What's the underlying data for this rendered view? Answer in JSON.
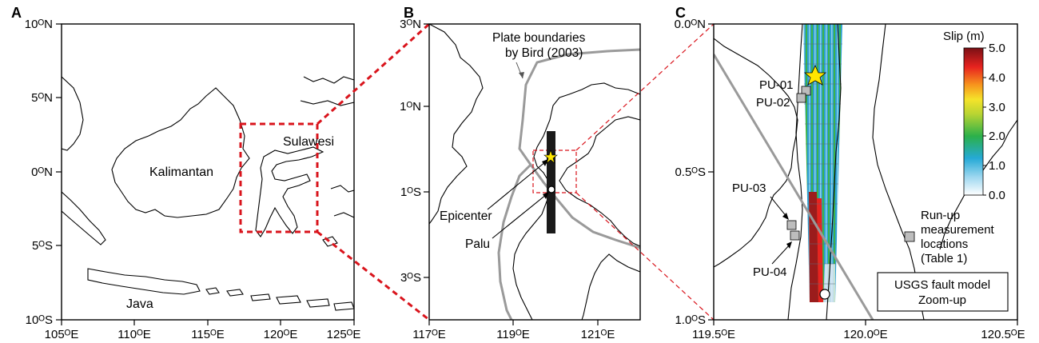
{
  "panels": {
    "a": {
      "letter": "A",
      "y_ticks": [
        "10ᴼN",
        "5ᴼN",
        "0ᴼN",
        "5ᴼS",
        "10ᴼS"
      ],
      "x_ticks": [
        "105ᴼE",
        "110ᴼE",
        "115ᴼE",
        "120ᴼE",
        "125ᴼE"
      ],
      "labels": {
        "kalimantan": "Kalimantan",
        "sulawesi": "Sulawesi",
        "java": "Java"
      }
    },
    "b": {
      "letter": "B",
      "y_ticks": [
        "3ᴼN",
        "1ᴼN",
        "1ᴼS",
        "3ᴼS"
      ],
      "x_ticks": [
        "117ᴼE",
        "119ᴼE",
        "121ᴼE"
      ],
      "labels": {
        "plate_line1": "Plate boundaries",
        "plate_line2": "by Bird (2003)",
        "epicenter": "Epicenter",
        "palu": "Palu"
      }
    },
    "c": {
      "letter": "C",
      "y_ticks": [
        "0.0ᴼN",
        "0.5ᴼS",
        "1.0ᴼS"
      ],
      "x_ticks": [
        "119.5ᴼE",
        "120.0ᴼE",
        "120.5ᴼE"
      ],
      "points": [
        "PU-01",
        "PU-02",
        "PU-03",
        "PU-04"
      ],
      "colorbar": {
        "title": "Slip (m)",
        "ticks": [
          "5.0",
          "4.0",
          "3.0",
          "2.0",
          "1.0",
          "0.0"
        ]
      },
      "legend": {
        "line1": "Run-up",
        "line2": "measurement",
        "line3": "locations",
        "line4": "(Table 1)"
      },
      "model_box": {
        "line1": "USGS fault model",
        "line2": "Zoom-up"
      }
    }
  },
  "colors": {
    "plate_boundary": "#9a9a9a",
    "inset_box": "#d9141c",
    "star": "#ffe600",
    "marker": "#bdbdbd"
  }
}
